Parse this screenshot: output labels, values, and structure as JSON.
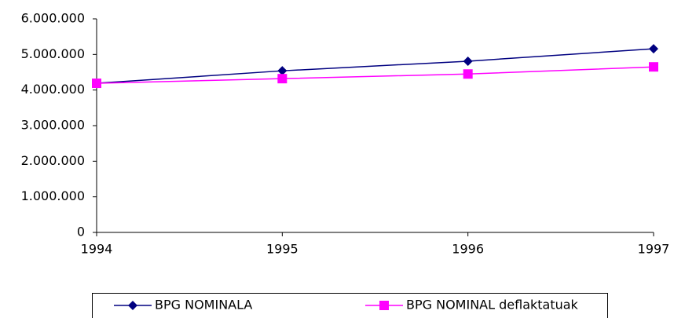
{
  "chart_data": {
    "type": "line",
    "categories": [
      "1994",
      "1995",
      "1996",
      "1997"
    ],
    "series": [
      {
        "name": "BPG NOMINALA",
        "color": "#000080",
        "marker": "diamond",
        "values": [
          4190000,
          4540000,
          4810000,
          5160000
        ]
      },
      {
        "name": "BPG NOMINAL deflaktatuak",
        "color": "#ff00ff",
        "marker": "square",
        "values": [
          4190000,
          4320000,
          4450000,
          4650000
        ]
      }
    ],
    "ylim": [
      0,
      6000000
    ],
    "yticks": [
      0,
      {
        "value": 1000000,
        "label": "1.000.000"
      },
      {
        "value": 2000000,
        "label": "2.000.000"
      },
      {
        "value": 3000000,
        "label": "3.000.000"
      },
      {
        "value": 4000000,
        "label": "4.000.000"
      },
      {
        "value": 5000000,
        "label": "5.000.000"
      },
      {
        "value": 6000000,
        "label": "6.000.000"
      }
    ],
    "grid": false,
    "legend": "bottom"
  }
}
